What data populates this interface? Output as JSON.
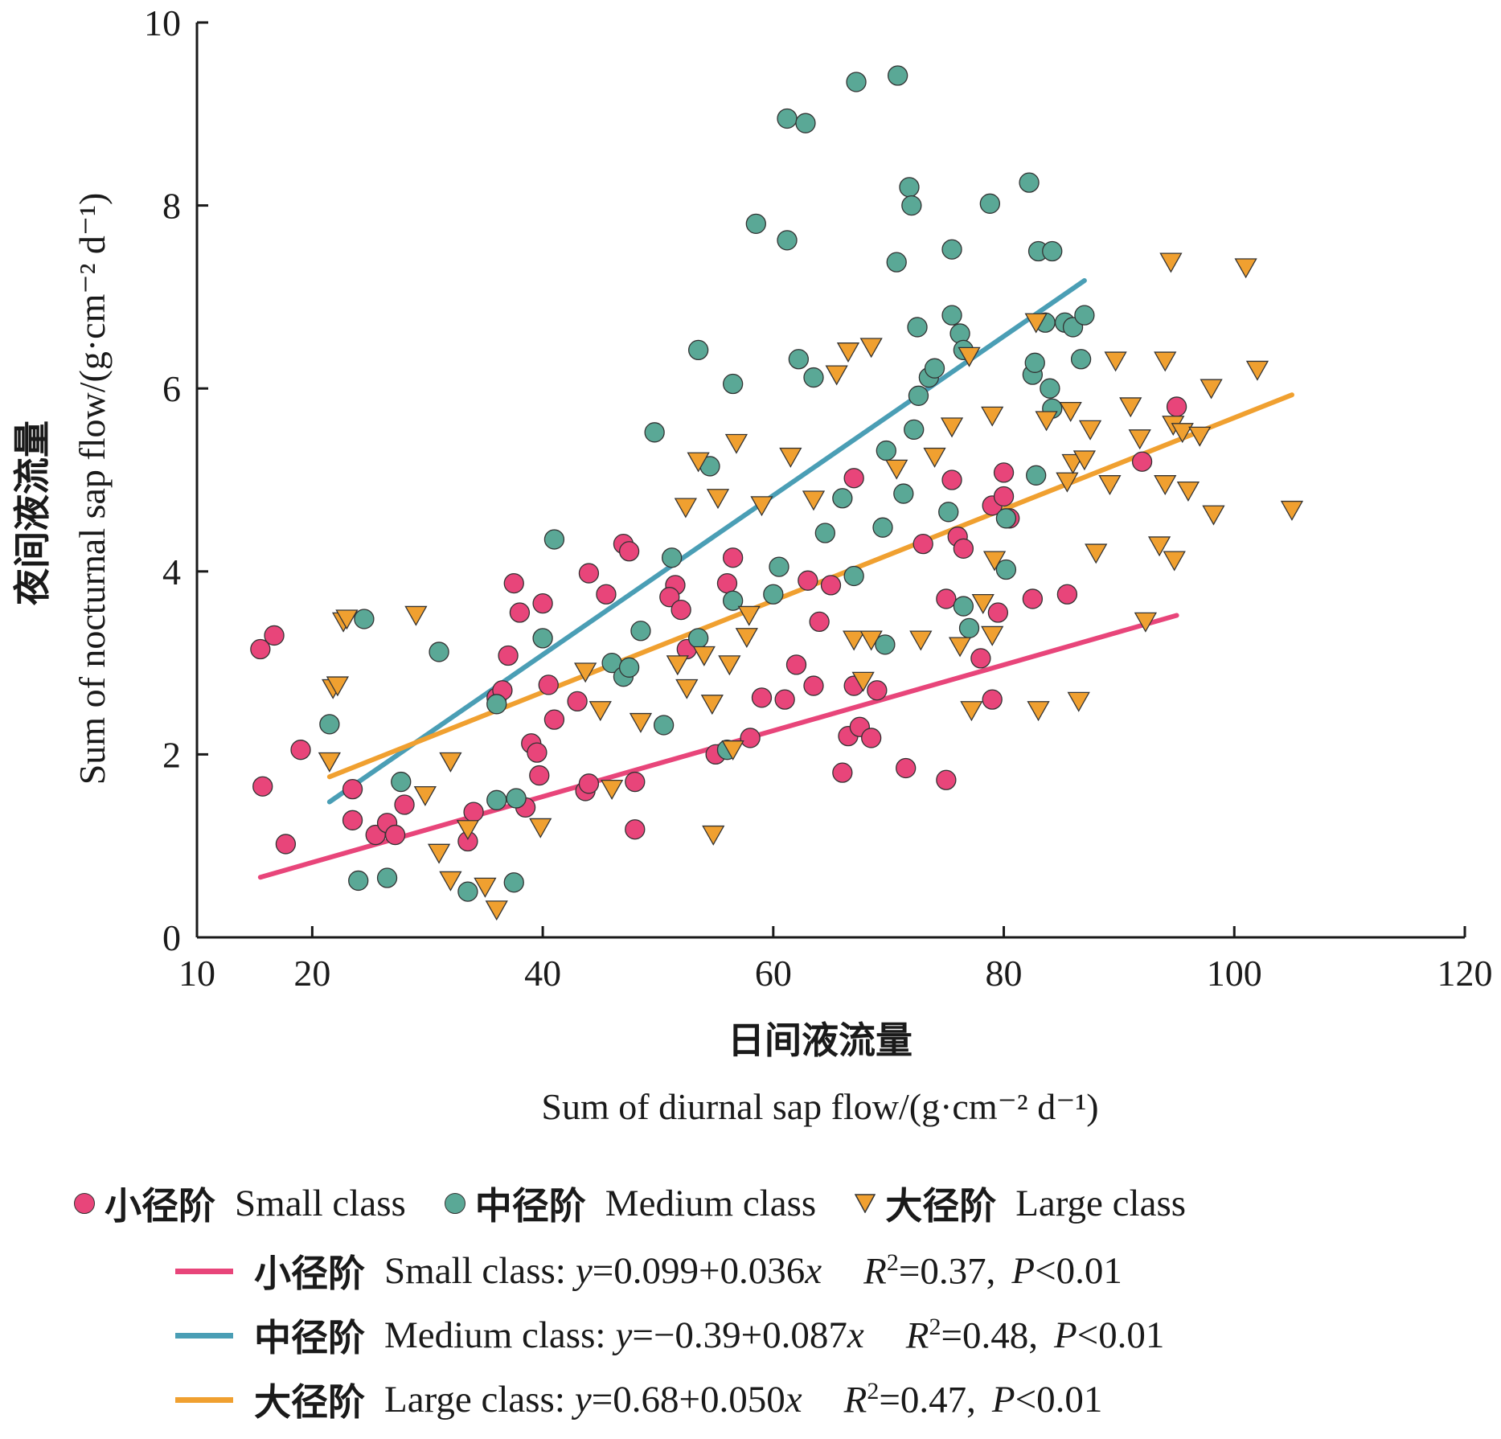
{
  "chart_data": {
    "type": "scatter",
    "xlabel_cn": "日间液流量",
    "xlabel_en": "Sum of diurnal sap flow/(g·cm⁻² d⁻¹)",
    "ylabel_cn": "夜间液流量",
    "ylabel_en": "Sum of nocturnal sap flow/(g·cm⁻² d⁻¹)",
    "xlim": [
      10,
      120
    ],
    "ylim": [
      0,
      10
    ],
    "xticks": [
      "10",
      "20",
      "40",
      "60",
      "80",
      "100",
      "120"
    ],
    "yticks": [
      "0",
      "2",
      "4",
      "6",
      "8",
      "10"
    ],
    "series": [
      {
        "name_cn": "小径阶",
        "name_en": "Small class",
        "marker": "circle",
        "color": "#e8457a",
        "points": [
          [
            15.5,
            3.15
          ],
          [
            16.7,
            3.3
          ],
          [
            15.7,
            1.65
          ],
          [
            17.7,
            1.02
          ],
          [
            19,
            2.05
          ],
          [
            23.5,
            1.62
          ],
          [
            23.5,
            1.28
          ],
          [
            25.5,
            1.12
          ],
          [
            26.5,
            1.25
          ],
          [
            27.2,
            1.12
          ],
          [
            28,
            1.45
          ],
          [
            33.5,
            1.05
          ],
          [
            34,
            1.37
          ],
          [
            36,
            2.62
          ],
          [
            36.5,
            2.7
          ],
          [
            37,
            3.08
          ],
          [
            37.5,
            3.87
          ],
          [
            38,
            3.55
          ],
          [
            38.5,
            1.42
          ],
          [
            39,
            2.12
          ],
          [
            39.5,
            2.02
          ],
          [
            39.7,
            1.77
          ],
          [
            40,
            3.65
          ],
          [
            40.5,
            2.76
          ],
          [
            41,
            2.38
          ],
          [
            43,
            2.58
          ],
          [
            43.7,
            1.6
          ],
          [
            44,
            1.68
          ],
          [
            44,
            3.98
          ],
          [
            45.5,
            3.75
          ],
          [
            47,
            4.3
          ],
          [
            47.5,
            4.22
          ],
          [
            48,
            1.7
          ],
          [
            48,
            1.18
          ],
          [
            51.5,
            3.85
          ],
          [
            51,
            3.72
          ],
          [
            52,
            3.58
          ],
          [
            52.5,
            3.15
          ],
          [
            55,
            2.0
          ],
          [
            56,
            3.87
          ],
          [
            56.5,
            4.15
          ],
          [
            58,
            2.18
          ],
          [
            59,
            2.62
          ],
          [
            61,
            2.6
          ],
          [
            62,
            2.98
          ],
          [
            63,
            3.9
          ],
          [
            63.5,
            2.75
          ],
          [
            64,
            3.45
          ],
          [
            65,
            3.85
          ],
          [
            66,
            1.8
          ],
          [
            66.5,
            2.2
          ],
          [
            67,
            2.75
          ],
          [
            67,
            5.02
          ],
          [
            67.5,
            2.3
          ],
          [
            68.5,
            2.18
          ],
          [
            69,
            2.7
          ],
          [
            71.5,
            1.85
          ],
          [
            73,
            4.3
          ],
          [
            75,
            1.72
          ],
          [
            75,
            3.7
          ],
          [
            75.5,
            5.0
          ],
          [
            76,
            4.38
          ],
          [
            76.5,
            4.25
          ],
          [
            78,
            3.05
          ],
          [
            79,
            2.6
          ],
          [
            79,
            4.72
          ],
          [
            80,
            5.08
          ],
          [
            80,
            4.82
          ],
          [
            79.5,
            3.55
          ],
          [
            80.5,
            4.58
          ],
          [
            82.5,
            3.7
          ],
          [
            85.5,
            3.75
          ],
          [
            92,
            5.2
          ],
          [
            95,
            5.8
          ]
        ]
      },
      {
        "name_cn": "中径阶",
        "name_en": "Medium class",
        "marker": "circle",
        "color": "#5aa896",
        "points": [
          [
            21.5,
            2.33
          ],
          [
            24,
            0.62
          ],
          [
            24.5,
            3.48
          ],
          [
            26.5,
            0.65
          ],
          [
            27.7,
            1.7
          ],
          [
            31,
            3.12
          ],
          [
            33.5,
            0.5
          ],
          [
            36,
            1.5
          ],
          [
            36,
            2.55
          ],
          [
            37.5,
            0.6
          ],
          [
            37.7,
            1.52
          ],
          [
            40,
            3.27
          ],
          [
            41,
            4.35
          ],
          [
            46,
            3.0
          ],
          [
            47,
            2.85
          ],
          [
            47.5,
            2.95
          ],
          [
            48.5,
            3.35
          ],
          [
            49.7,
            5.52
          ],
          [
            50.5,
            2.32
          ],
          [
            51.2,
            4.15
          ],
          [
            53.5,
            6.42
          ],
          [
            53.5,
            3.27
          ],
          [
            54.5,
            5.15
          ],
          [
            56,
            2.05
          ],
          [
            56.5,
            6.05
          ],
          [
            56.5,
            3.68
          ],
          [
            58.5,
            7.8
          ],
          [
            60,
            3.75
          ],
          [
            60.5,
            4.05
          ],
          [
            61.2,
            8.95
          ],
          [
            61.2,
            7.62
          ],
          [
            62.2,
            6.32
          ],
          [
            62.8,
            8.9
          ],
          [
            63.5,
            6.12
          ],
          [
            64.5,
            4.42
          ],
          [
            66,
            4.8
          ],
          [
            67,
            3.95
          ],
          [
            67.2,
            9.35
          ],
          [
            69.5,
            4.48
          ],
          [
            69.7,
            3.2
          ],
          [
            69.8,
            5.32
          ],
          [
            70.7,
            7.38
          ],
          [
            70.8,
            9.42
          ],
          [
            71.3,
            4.85
          ],
          [
            71.8,
            8.2
          ],
          [
            72,
            8.0
          ],
          [
            72.2,
            5.55
          ],
          [
            72.5,
            6.67
          ],
          [
            72.6,
            5.92
          ],
          [
            73.5,
            6.12
          ],
          [
            74,
            6.22
          ],
          [
            75.5,
            7.52
          ],
          [
            75.5,
            6.8
          ],
          [
            75.2,
            4.65
          ],
          [
            76.2,
            6.6
          ],
          [
            76.5,
            6.42
          ],
          [
            76.5,
            3.62
          ],
          [
            77,
            3.38
          ],
          [
            78.8,
            8.02
          ],
          [
            80.2,
            4.02
          ],
          [
            80.2,
            4.58
          ],
          [
            82.2,
            8.25
          ],
          [
            82.5,
            6.15
          ],
          [
            82.7,
            6.28
          ],
          [
            82.8,
            5.05
          ],
          [
            83,
            7.5
          ],
          [
            83.6,
            6.72
          ],
          [
            84.2,
            7.5
          ],
          [
            84,
            6.0
          ],
          [
            84.2,
            5.78
          ],
          [
            85.3,
            6.72
          ],
          [
            86,
            6.67
          ],
          [
            86.7,
            6.32
          ],
          [
            87,
            6.8
          ]
        ]
      },
      {
        "name_cn": "大径阶",
        "name_en": "Large class",
        "marker": "triangle",
        "color": "#f0a030",
        "points": [
          [
            21.5,
            1.92
          ],
          [
            21.8,
            2.72
          ],
          [
            22.2,
            2.75
          ],
          [
            22.7,
            3.45
          ],
          [
            23,
            3.48
          ],
          [
            29,
            3.52
          ],
          [
            29.8,
            1.55
          ],
          [
            31,
            0.92
          ],
          [
            32,
            0.62
          ],
          [
            32,
            1.92
          ],
          [
            33.5,
            1.18
          ],
          [
            35,
            0.55
          ],
          [
            36,
            0.3
          ],
          [
            39.8,
            1.2
          ],
          [
            43.7,
            2.9
          ],
          [
            45,
            2.48
          ],
          [
            46,
            1.62
          ],
          [
            48.5,
            2.35
          ],
          [
            51.7,
            2.98
          ],
          [
            52.4,
            4.7
          ],
          [
            52.5,
            2.72
          ],
          [
            53.5,
            5.2
          ],
          [
            54,
            3.08
          ],
          [
            54.7,
            2.55
          ],
          [
            54.8,
            1.12
          ],
          [
            55.2,
            4.8
          ],
          [
            56.2,
            2.98
          ],
          [
            56.5,
            2.05
          ],
          [
            56.8,
            5.4
          ],
          [
            57.7,
            3.28
          ],
          [
            57.9,
            3.52
          ],
          [
            59,
            4.72
          ],
          [
            61.5,
            5.25
          ],
          [
            63.5,
            4.78
          ],
          [
            65.5,
            6.15
          ],
          [
            66.5,
            6.4
          ],
          [
            67,
            3.25
          ],
          [
            67.8,
            2.8
          ],
          [
            68.5,
            6.45
          ],
          [
            68.5,
            3.25
          ],
          [
            70.7,
            5.12
          ],
          [
            72.8,
            3.25
          ],
          [
            74,
            5.25
          ],
          [
            75.5,
            5.58
          ],
          [
            76.2,
            3.18
          ],
          [
            77,
            6.35
          ],
          [
            77.2,
            2.48
          ],
          [
            78.2,
            3.65
          ],
          [
            79,
            5.7
          ],
          [
            79,
            3.3
          ],
          [
            79.2,
            4.12
          ],
          [
            82.8,
            6.72
          ],
          [
            83,
            2.48
          ],
          [
            83.7,
            5.65
          ],
          [
            85.5,
            4.98
          ],
          [
            85.8,
            5.75
          ],
          [
            86,
            5.18
          ],
          [
            86.5,
            2.58
          ],
          [
            87,
            5.22
          ],
          [
            87.5,
            5.55
          ],
          [
            88,
            4.2
          ],
          [
            89.2,
            4.95
          ],
          [
            89.7,
            6.3
          ],
          [
            91,
            5.8
          ],
          [
            91.8,
            5.45
          ],
          [
            92.3,
            3.45
          ],
          [
            93.5,
            4.28
          ],
          [
            94,
            4.95
          ],
          [
            94,
            6.3
          ],
          [
            94.5,
            7.38
          ],
          [
            94.7,
            5.6
          ],
          [
            94.8,
            4.12
          ],
          [
            95.5,
            5.52
          ],
          [
            96,
            4.88
          ],
          [
            97,
            5.48
          ],
          [
            98,
            6.0
          ],
          [
            98.2,
            4.62
          ],
          [
            101,
            7.32
          ],
          [
            102,
            6.2
          ],
          [
            105,
            4.67
          ]
        ]
      }
    ],
    "fits": [
      {
        "name_cn": "小径阶",
        "name_en": "Small class:",
        "intercept": 0.099,
        "slope": 0.036,
        "x_range": [
          15.5,
          95
        ],
        "color": "#e8457a",
        "eq_y": "y",
        "eq_body": "=0.099+0.036",
        "eq_x": "x",
        "r2_R": "R",
        "r2_sup": "2",
        "r2_val": "=0.37,",
        "p_P": "P",
        "p_val": "<0.01"
      },
      {
        "name_cn": "中径阶",
        "name_en": "Medium class:",
        "intercept": -0.39,
        "slope": 0.087,
        "x_range": [
          21.5,
          87
        ],
        "color": "#4a9eb5",
        "eq_y": "y",
        "eq_body": "=−0.39+0.087",
        "eq_x": "x",
        "r2_R": "R",
        "r2_sup": "2",
        "r2_val": "=0.48,",
        "p_P": "P",
        "p_val": "<0.01"
      },
      {
        "name_cn": "大径阶",
        "name_en": "Large class:",
        "intercept": 0.68,
        "slope": 0.05,
        "x_range": [
          21.5,
          105
        ],
        "color": "#f0a030",
        "eq_y": "y",
        "eq_body": "=0.68+0.050",
        "eq_x": "x",
        "r2_R": "R",
        "r2_sup": "2",
        "r2_val": "=0.47,",
        "p_P": "P",
        "p_val": "<0.01"
      }
    ],
    "legend_placement": "bottom",
    "grid": false
  }
}
